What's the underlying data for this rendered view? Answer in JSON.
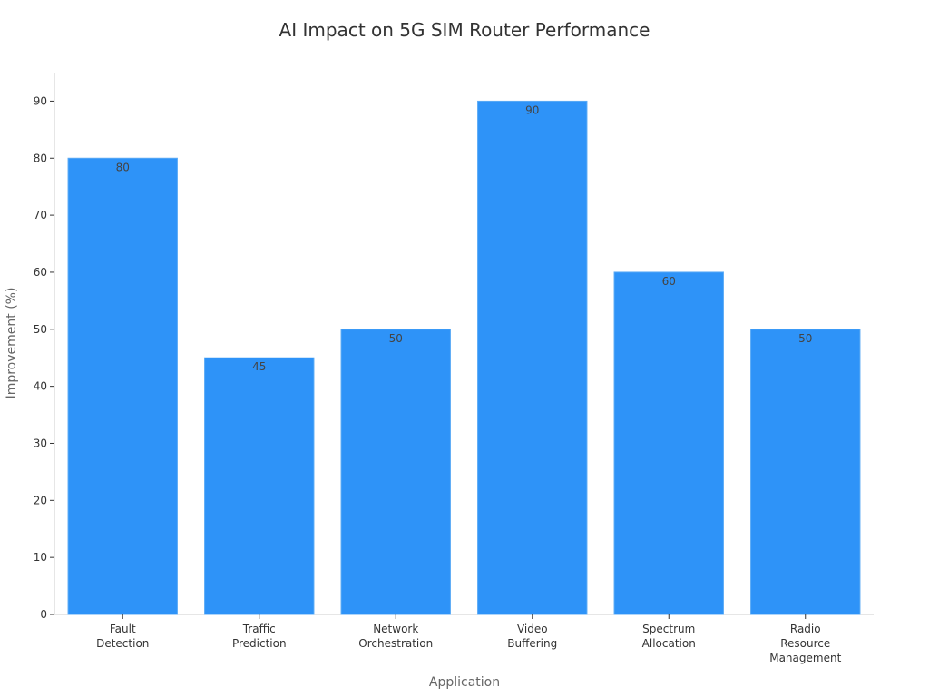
{
  "chart_data": {
    "type": "bar",
    "title": "AI Impact on 5G SIM Router Performance",
    "xlabel": "Application",
    "ylabel": "Improvement (%)",
    "categories": [
      [
        "Fault",
        "Detection"
      ],
      [
        "Traffic",
        "Prediction"
      ],
      [
        "Network",
        "Orchestration"
      ],
      [
        "Video",
        "Buffering"
      ],
      [
        "Spectrum",
        "Allocation"
      ],
      [
        "Radio",
        "Resource",
        "Management"
      ]
    ],
    "values": [
      80,
      45,
      50,
      90,
      60,
      50
    ],
    "data_labels": [
      "80",
      "45",
      "50",
      "90",
      "60",
      "50"
    ],
    "yticks": [
      0,
      10,
      20,
      30,
      40,
      50,
      60,
      70,
      80,
      90
    ],
    "ylim": [
      0,
      95
    ],
    "grid": false,
    "colors": {
      "bar": "#2e93f8",
      "bar_edge": "#5aaaf5",
      "axis": "#cccccc",
      "tick": "#333333"
    }
  }
}
